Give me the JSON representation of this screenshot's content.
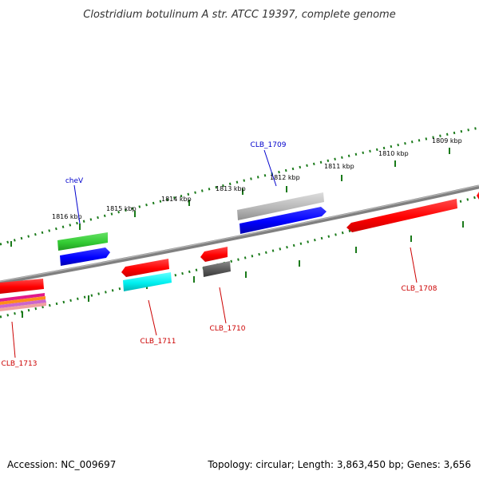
{
  "title": "Clostridium botulinum A str. ATCC 19397, complete genome",
  "footer": {
    "accession": "Accession: NC_009697",
    "summary": "Topology: circular; Length: 3,863,450 bp; Genes: 3,656"
  },
  "kbp_labels": [
    "1809 kbp",
    "1810 kbp",
    "1811 kbp",
    "1812 kbp",
    "1813 kbp",
    "1814 kbp",
    "1815 kbp",
    "1816 kbp"
  ],
  "gene_labels": {
    "top": [
      "CLB_1709",
      "cheV"
    ],
    "bottom": [
      "CLB_1708",
      "CLB_1710",
      "CLB_1711",
      "CLB_1713"
    ]
  },
  "colors": {
    "backbone": "#808080",
    "tick": "#1a7a1a",
    "label_blue": "#0000cc",
    "label_red": "#cc0000",
    "gene_red": "#ff0000",
    "gene_blue": "#0000ff",
    "gene_green": "#33cc33",
    "gene_cyan": "#00ffff",
    "gene_gray": "#b0b0b0",
    "gene_dark_gray": "#606060"
  }
}
